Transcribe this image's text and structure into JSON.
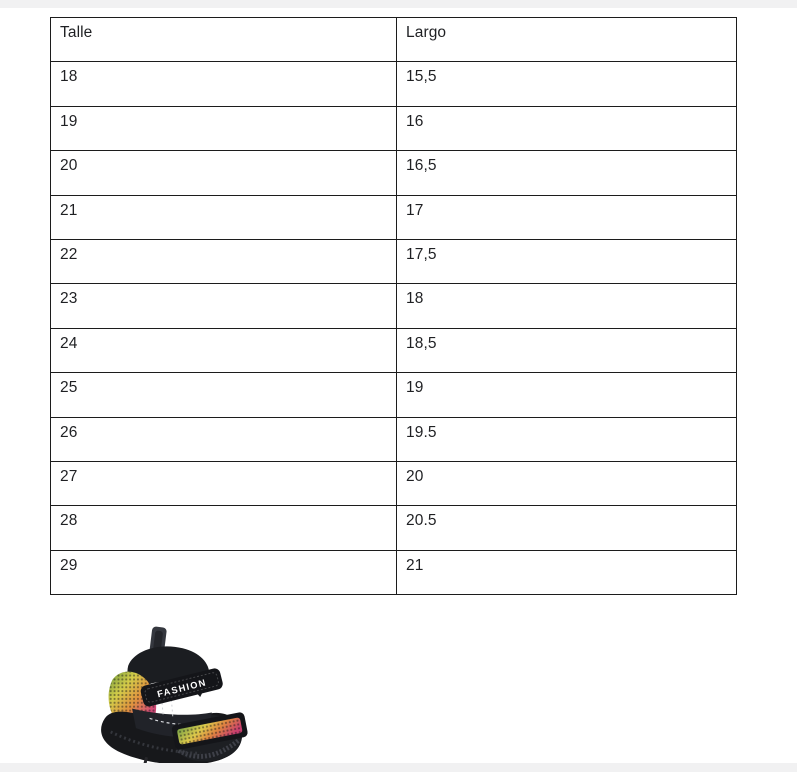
{
  "theme": {
    "page_bg": "#ffffff",
    "band_color": "#f1f1f2",
    "table_border": "#1c1c1c",
    "text_color": "#1f2023"
  },
  "size_chart": {
    "columns": [
      "Talle",
      "Largo"
    ],
    "rows": [
      [
        "18",
        "15,5"
      ],
      [
        "19",
        "16"
      ],
      [
        "20",
        "16,5"
      ],
      [
        "21",
        "17"
      ],
      [
        "22",
        "17,5"
      ],
      [
        "23",
        "18"
      ],
      [
        "24",
        "18,5"
      ],
      [
        "25",
        "19"
      ],
      [
        "26",
        "19.5"
      ],
      [
        "27",
        "20"
      ],
      [
        "28",
        "20.5"
      ],
      [
        "29",
        "21"
      ]
    ]
  },
  "product_image": {
    "label": "FASHION",
    "colors": {
      "body": "#17181b",
      "mesh_green": "#6f9c3f",
      "mesh_yellow": "#d3cc49",
      "mesh_orange": "#e0923f",
      "mesh_pink": "#d24a78"
    }
  }
}
